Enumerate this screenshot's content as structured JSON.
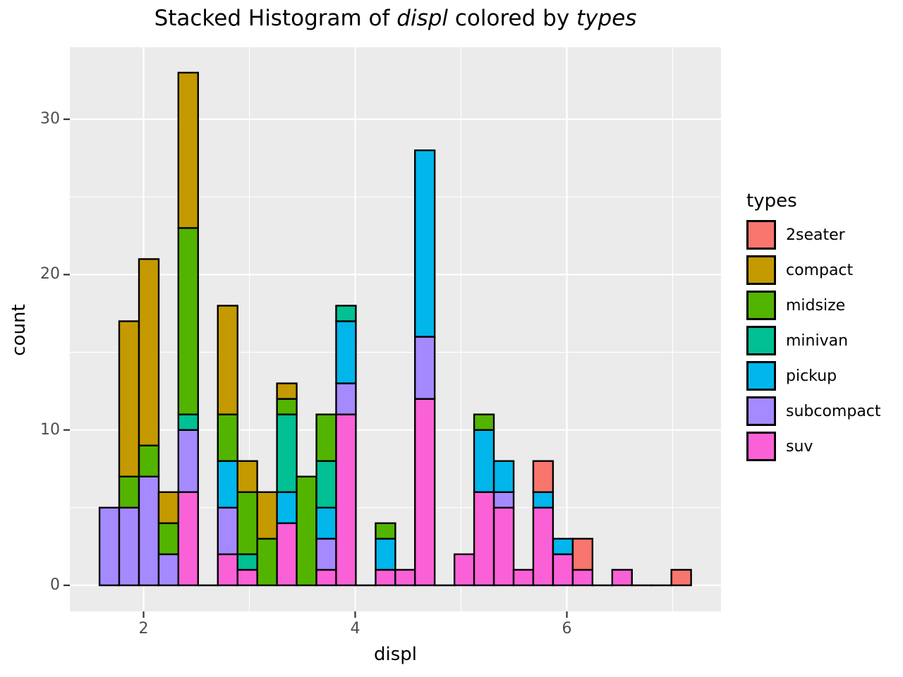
{
  "title": {
    "segments": [
      {
        "text": "Stacked Histogram of ",
        "italic": false
      },
      {
        "text": "displ",
        "italic": true
      },
      {
        "text": " colored by ",
        "italic": false
      },
      {
        "text": "types",
        "italic": true
      }
    ]
  },
  "axes": {
    "x": {
      "label": "displ",
      "major_ticks": [
        2,
        4,
        6
      ],
      "minor_ticks": [
        3,
        5,
        7
      ]
    },
    "y": {
      "label": "count",
      "major_ticks": [
        0,
        10,
        20,
        30
      ],
      "minor_ticks": [
        5,
        15,
        25
      ]
    }
  },
  "legend": {
    "title": "types",
    "entries": [
      {
        "label": "2seater",
        "color": "#F8766D"
      },
      {
        "label": "compact",
        "color": "#C49A00"
      },
      {
        "label": "midsize",
        "color": "#53B400"
      },
      {
        "label": "minivan",
        "color": "#00C094"
      },
      {
        "label": "pickup",
        "color": "#00B6EB"
      },
      {
        "label": "subcompact",
        "color": "#A58AFF"
      },
      {
        "label": "suv",
        "color": "#FB61D7"
      }
    ]
  },
  "colors": {
    "panel_background": "#EBEBEB",
    "grid": "#FFFFFF",
    "bar_outline": "#000000",
    "tick_mark": "#333333",
    "tick_label": "#4D4D4D"
  },
  "chart_data": {
    "type": "bar",
    "subtype": "stacked-histogram",
    "title": "Stacked Histogram of displ colored by types",
    "xlabel": "displ",
    "ylabel": "count",
    "xlim": [
      1.31,
      7.46
    ],
    "ylim": [
      -1.65,
      34.65
    ],
    "grid": "on",
    "legend_position": "right",
    "binwidth": 0.186,
    "total_count": 234,
    "stack_order_bottom_to_top": [
      "suv",
      "subcompact",
      "pickup",
      "minivan",
      "midsize",
      "compact",
      "2seater"
    ],
    "series_colors": {
      "2seater": "#F8766D",
      "compact": "#C49A00",
      "midsize": "#53B400",
      "minivan": "#00C094",
      "pickup": "#00B6EB",
      "subcompact": "#A58AFF",
      "suv": "#FB61D7"
    },
    "bins": [
      {
        "x": 1.677,
        "total": 5,
        "segments": {
          "subcompact": 5
        }
      },
      {
        "x": 1.863,
        "total": 17,
        "segments": {
          "subcompact": 5,
          "midsize": 2,
          "compact": 10
        }
      },
      {
        "x": 2.05,
        "total": 21,
        "segments": {
          "subcompact": 7,
          "midsize": 2,
          "compact": 12
        }
      },
      {
        "x": 2.236,
        "total": 6,
        "segments": {
          "subcompact": 2,
          "midsize": 2,
          "compact": 2
        }
      },
      {
        "x": 2.422,
        "total": 33,
        "segments": {
          "suv": 6,
          "subcompact": 4,
          "minivan": 1,
          "midsize": 12,
          "compact": 10
        }
      },
      {
        "x": 2.609,
        "total": 0,
        "segments": {}
      },
      {
        "x": 2.795,
        "total": 18,
        "segments": {
          "suv": 2,
          "subcompact": 3,
          "pickup": 3,
          "midsize": 3,
          "compact": 7
        }
      },
      {
        "x": 2.981,
        "total": 8,
        "segments": {
          "suv": 1,
          "minivan": 1,
          "midsize": 4,
          "compact": 2
        }
      },
      {
        "x": 3.168,
        "total": 6,
        "segments": {
          "midsize": 3,
          "compact": 3
        }
      },
      {
        "x": 3.354,
        "total": 13,
        "segments": {
          "suv": 4,
          "pickup": 2,
          "minivan": 5,
          "midsize": 1,
          "compact": 1
        }
      },
      {
        "x": 3.54,
        "total": 7,
        "segments": {
          "midsize": 7
        }
      },
      {
        "x": 3.727,
        "total": 11,
        "segments": {
          "suv": 1,
          "subcompact": 2,
          "pickup": 2,
          "minivan": 3,
          "midsize": 3
        }
      },
      {
        "x": 3.913,
        "total": 18,
        "segments": {
          "suv": 11,
          "subcompact": 2,
          "pickup": 4,
          "minivan": 1
        }
      },
      {
        "x": 4.099,
        "total": 0,
        "segments": {}
      },
      {
        "x": 4.286,
        "total": 4,
        "segments": {
          "suv": 1,
          "pickup": 2,
          "midsize": 1
        }
      },
      {
        "x": 4.472,
        "total": 1,
        "segments": {
          "suv": 1
        }
      },
      {
        "x": 4.658,
        "total": 28,
        "segments": {
          "suv": 12,
          "subcompact": 4,
          "pickup": 12
        }
      },
      {
        "x": 4.845,
        "total": 0,
        "segments": {}
      },
      {
        "x": 5.031,
        "total": 2,
        "segments": {
          "suv": 2
        }
      },
      {
        "x": 5.217,
        "total": 11,
        "segments": {
          "suv": 6,
          "pickup": 4,
          "midsize": 1
        }
      },
      {
        "x": 5.404,
        "total": 8,
        "segments": {
          "suv": 5,
          "subcompact": 1,
          "pickup": 2
        }
      },
      {
        "x": 5.59,
        "total": 1,
        "segments": {
          "suv": 1
        }
      },
      {
        "x": 5.776,
        "total": 8,
        "segments": {
          "suv": 5,
          "pickup": 1,
          "2seater": 2
        }
      },
      {
        "x": 5.963,
        "total": 3,
        "segments": {
          "suv": 2,
          "pickup": 1
        }
      },
      {
        "x": 6.149,
        "total": 3,
        "segments": {
          "suv": 1,
          "2seater": 2
        }
      },
      {
        "x": 6.335,
        "total": 0,
        "segments": {}
      },
      {
        "x": 6.522,
        "total": 1,
        "segments": {
          "suv": 1
        }
      },
      {
        "x": 6.708,
        "total": 0,
        "segments": {}
      },
      {
        "x": 6.894,
        "total": 0,
        "segments": {}
      },
      {
        "x": 7.081,
        "total": 1,
        "segments": {
          "2seater": 1
        }
      }
    ]
  }
}
